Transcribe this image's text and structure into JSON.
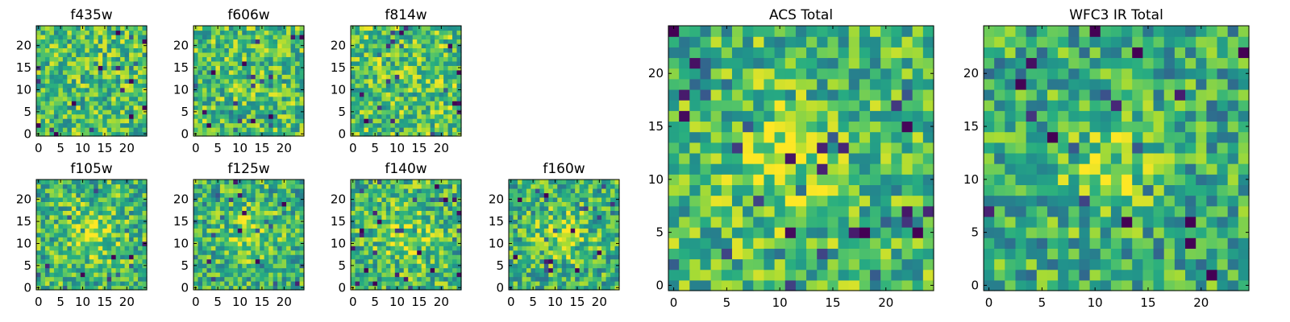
{
  "colormap": "viridis",
  "colors": {
    "low": "#440154",
    "high": "#fde725",
    "frame": "#000000"
  },
  "chart_data": [
    {
      "type": "heatmap",
      "title": "f435w",
      "grid": [
        25,
        25
      ],
      "mean_level": 0.7,
      "xticks": [
        0,
        5,
        10,
        15,
        20
      ],
      "yticks": [
        0,
        5,
        10,
        15,
        20
      ],
      "xlim": [
        -0.5,
        24.5
      ],
      "ylim": [
        -0.5,
        24.5
      ]
    },
    {
      "type": "heatmap",
      "title": "f606w",
      "grid": [
        25,
        25
      ],
      "mean_level": 0.7,
      "xticks": [
        0,
        5,
        10,
        15,
        20
      ],
      "yticks": [
        0,
        5,
        10,
        15,
        20
      ],
      "xlim": [
        -0.5,
        24.5
      ],
      "ylim": [
        -0.5,
        24.5
      ]
    },
    {
      "type": "heatmap",
      "title": "f814w",
      "grid": [
        25,
        25
      ],
      "mean_level": 0.72,
      "xticks": [
        0,
        5,
        10,
        15,
        20
      ],
      "yticks": [
        0,
        5,
        10,
        15,
        20
      ],
      "xlim": [
        -0.5,
        24.5
      ],
      "ylim": [
        -0.5,
        24.5
      ]
    },
    {
      "type": "heatmap",
      "title": "f105w",
      "grid": [
        25,
        25
      ],
      "mean_level": 0.72,
      "peak_center": [
        12,
        12
      ],
      "xticks": [
        0,
        5,
        10,
        15,
        20
      ],
      "yticks": [
        0,
        5,
        10,
        15,
        20
      ],
      "xlim": [
        -0.5,
        24.5
      ],
      "ylim": [
        -0.5,
        24.5
      ]
    },
    {
      "type": "heatmap",
      "title": "f125w",
      "grid": [
        25,
        25
      ],
      "mean_level": 0.7,
      "peak_center": [
        12,
        12
      ],
      "xticks": [
        0,
        5,
        10,
        15,
        20
      ],
      "yticks": [
        0,
        5,
        10,
        15,
        20
      ],
      "xlim": [
        -0.5,
        24.5
      ],
      "ylim": [
        -0.5,
        24.5
      ]
    },
    {
      "type": "heatmap",
      "title": "f140w",
      "grid": [
        25,
        25
      ],
      "mean_level": 0.72,
      "peak_center": [
        12,
        12
      ],
      "xticks": [
        0,
        5,
        10,
        15,
        20
      ],
      "yticks": [
        0,
        5,
        10,
        15,
        20
      ],
      "xlim": [
        -0.5,
        24.5
      ],
      "ylim": [
        -0.5,
        24.5
      ]
    },
    {
      "type": "heatmap",
      "title": "f160w",
      "grid": [
        25,
        25
      ],
      "mean_level": 0.7,
      "peak_center": [
        12,
        12
      ],
      "xticks": [
        0,
        5,
        10,
        15,
        20
      ],
      "yticks": [
        0,
        5,
        10,
        15,
        20
      ],
      "xlim": [
        -0.5,
        24.5
      ],
      "ylim": [
        -0.5,
        24.5
      ]
    },
    {
      "type": "heatmap",
      "title": "ACS Total",
      "grid": [
        25,
        25
      ],
      "mean_level": 0.72,
      "peak_center": [
        10,
        11
      ],
      "xticks": [
        0,
        5,
        10,
        15,
        20
      ],
      "yticks": [
        0,
        5,
        10,
        15,
        20
      ],
      "xlim": [
        -0.5,
        24.5
      ],
      "ylim": [
        -0.5,
        24.5
      ]
    },
    {
      "type": "heatmap",
      "title": "WFC3 IR Total",
      "grid": [
        25,
        25
      ],
      "mean_level": 0.66,
      "peak_center": [
        12,
        12
      ],
      "xticks": [
        0,
        5,
        10,
        15,
        20
      ],
      "yticks": [
        0,
        5,
        10,
        15,
        20
      ],
      "xlim": [
        -0.5,
        24.5
      ],
      "ylim": [
        -0.5,
        24.5
      ]
    }
  ]
}
